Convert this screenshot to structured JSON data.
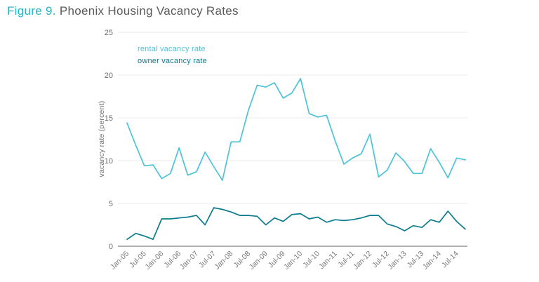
{
  "figure": {
    "label": "Figure 9.",
    "title": " Phoenix Housing Vacancy Rates"
  },
  "legend": [
    {
      "label": "rental vacancy rate",
      "color": "#4cc3d6"
    },
    {
      "label": "owner vacancy rate",
      "color": "#0c7b8d"
    }
  ],
  "colors": {
    "figure_label": "#29b4c6",
    "title_text": "#58595b",
    "rental_line": "#4cc3d6",
    "owner_line": "#0c7b8d",
    "gridline": "#ebebeb",
    "zero_axis": "#b1b1b4",
    "axis_text": "#6e6e71",
    "xtick_text": "#77787a"
  },
  "chart_data": {
    "type": "line",
    "title": "Figure 9. Phoenix Housing Vacancy Rates",
    "xlabel": "",
    "ylabel": "vacancy rate (percent)",
    "ylim": [
      0,
      25
    ],
    "yticks": [
      0,
      5,
      10,
      15,
      20,
      25
    ],
    "grid": "horizontal",
    "legend_position": "top-left-inside",
    "x": [
      "Jan-05",
      "Apr-05",
      "Jul-05",
      "Oct-05",
      "Jan-06",
      "Apr-06",
      "Jul-06",
      "Oct-06",
      "Jan-07",
      "Apr-07",
      "Jul-07",
      "Oct-07",
      "Jan-08",
      "Apr-08",
      "Jul-08",
      "Oct-08",
      "Jan-09",
      "Apr-09",
      "Jul-09",
      "Oct-09",
      "Jan-10",
      "Apr-10",
      "Jul-10",
      "Oct-10",
      "Jan-11",
      "Apr-11",
      "Jul-11",
      "Oct-11",
      "Jan-12",
      "Apr-12",
      "Jul-12",
      "Oct-12",
      "Jan-13",
      "Apr-13",
      "Jul-13",
      "Oct-13",
      "Jan-14",
      "Apr-14",
      "Jul-14",
      "Oct-14"
    ],
    "xtick_labels": [
      "Jan-05",
      "Jul-05",
      "Jan-06",
      "Jul-06",
      "Jan-07",
      "Jul-07",
      "Jan-08",
      "Jul-08",
      "Jan-09",
      "Jul-09",
      "Jan-10",
      "Jul-10",
      "Jan-11",
      "Jul-11",
      "Jan-12",
      "Jul-12",
      "Jan-13",
      "Jul-13",
      "Jan-14",
      "Jul-14"
    ],
    "series": [
      {
        "name": "rental vacancy rate",
        "color": "#4cc3d6",
        "values": [
          14.4,
          11.8,
          9.4,
          9.5,
          7.9,
          8.5,
          11.5,
          8.3,
          8.7,
          11.0,
          9.3,
          7.7,
          12.2,
          12.2,
          15.9,
          18.8,
          18.6,
          19.1,
          17.3,
          17.9,
          19.6,
          15.5,
          15.1,
          15.3,
          12.3,
          9.6,
          10.3,
          10.8,
          13.1,
          8.1,
          8.9,
          10.9,
          9.9,
          8.5,
          8.5,
          11.4,
          9.8,
          8.0,
          10.3,
          10.1
        ]
      },
      {
        "name": "owner vacancy rate",
        "color": "#0c7b8d",
        "values": [
          0.8,
          1.5,
          1.2,
          0.8,
          3.2,
          3.2,
          3.3,
          3.4,
          3.6,
          2.5,
          4.5,
          4.3,
          4.0,
          3.6,
          3.6,
          3.5,
          2.5,
          3.3,
          2.9,
          3.7,
          3.8,
          3.2,
          3.4,
          2.8,
          3.1,
          3.0,
          3.1,
          3.3,
          3.6,
          3.6,
          2.6,
          2.3,
          1.8,
          2.4,
          2.2,
          3.1,
          2.8,
          4.1,
          2.9,
          2.0
        ]
      }
    ]
  }
}
